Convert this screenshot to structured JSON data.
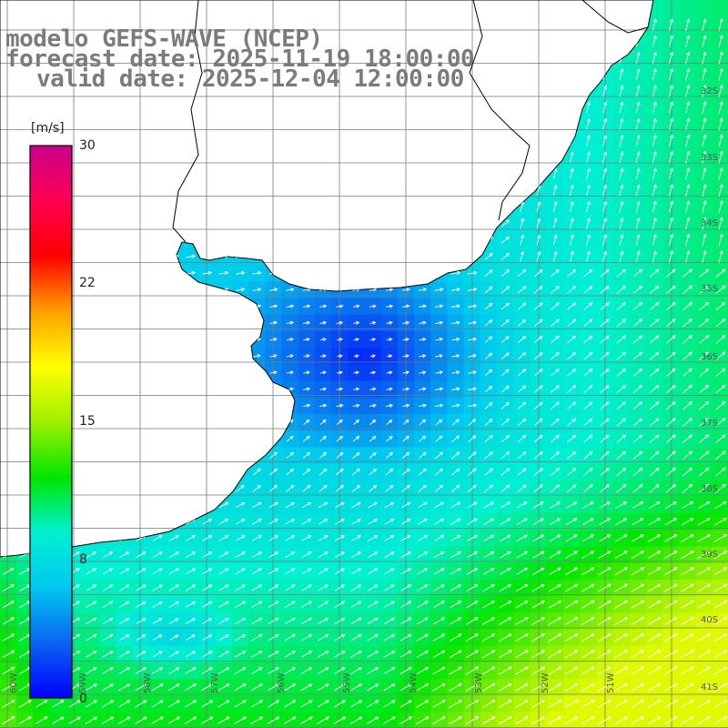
{
  "title": {
    "line1": "modelo GEFS-WAVE (NCEP)",
    "line2": "forecast date: 2025-11-19 18:00:00",
    "line3": "valid date: 2025-12-04 12:00:00"
  },
  "colorbar": {
    "unit": "[m/s]",
    "ticks": [
      {
        "value": 30,
        "label": "30"
      },
      {
        "value": 22,
        "label": "22"
      },
      {
        "value": 15,
        "label": "15"
      },
      {
        "value": 8,
        "label": "8"
      },
      {
        "value": 0,
        "label": "0"
      }
    ],
    "colors": [
      "#0000ff",
      "#0a64f0",
      "#00c8f0",
      "#00f0d2",
      "#00e600",
      "#a0f000",
      "#ffff00",
      "#ffa000",
      "#ff0000",
      "#ff0050",
      "#c8008c"
    ]
  },
  "axes": {
    "lat_labels": [
      "32S",
      "33S",
      "34S",
      "35S",
      "36S",
      "37S",
      "38S",
      "39S",
      "40S",
      "41S"
    ],
    "lon_labels": [
      "58W",
      "57W",
      "56W",
      "55W",
      "54W",
      "53W",
      "52W",
      "51W"
    ],
    "lon_labels_left": [
      "60W",
      "59W"
    ]
  },
  "map": {
    "region": "Rio de la Plata / Uruguay / Buenos Aires coast",
    "wind_speed_range": [
      0,
      30
    ],
    "land_color": "#ffffff",
    "grid_color": "#7a7a7a",
    "coast_color": "#000000"
  }
}
